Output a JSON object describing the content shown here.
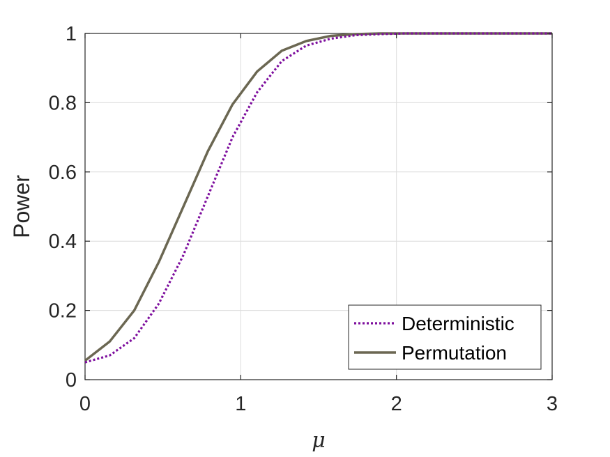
{
  "chart_data": {
    "type": "line",
    "title": "",
    "xlabel": "μ",
    "ylabel": "Power",
    "xlim": [
      0,
      3
    ],
    "ylim": [
      0,
      1
    ],
    "xticks": [
      0,
      1,
      2,
      3
    ],
    "xtick_labels": [
      "0",
      "1",
      "2",
      "3"
    ],
    "yticks": [
      0,
      0.2,
      0.4,
      0.6,
      0.8,
      1
    ],
    "ytick_labels": [
      "0",
      "0.2",
      "0.4",
      "0.6",
      "0.8",
      "1"
    ],
    "grid": true,
    "legend_position": "bottom-right",
    "series": [
      {
        "name": "Deterministic",
        "color": "#7E0F9E",
        "style": "dotted",
        "x": [
          0,
          0.158,
          0.316,
          0.474,
          0.632,
          0.789,
          0.947,
          1.105,
          1.263,
          1.421,
          1.579,
          1.737,
          1.895,
          2.053,
          2.211,
          2.368,
          2.526,
          2.684,
          2.842,
          3.0
        ],
        "y": [
          0.05,
          0.07,
          0.12,
          0.22,
          0.36,
          0.53,
          0.7,
          0.83,
          0.92,
          0.965,
          0.985,
          0.995,
          0.998,
          1.0,
          1.0,
          1.0,
          1.0,
          1.0,
          1.0,
          1.0
        ]
      },
      {
        "name": "Permutation",
        "color": "#6B6752",
        "style": "solid",
        "x": [
          0,
          0.158,
          0.316,
          0.474,
          0.632,
          0.789,
          0.947,
          1.105,
          1.263,
          1.421,
          1.579,
          1.737,
          1.895,
          2.053,
          2.211,
          2.368,
          2.526,
          2.684,
          2.842,
          3.0
        ],
        "y": [
          0.055,
          0.11,
          0.2,
          0.34,
          0.5,
          0.66,
          0.795,
          0.89,
          0.95,
          0.978,
          0.993,
          0.998,
          1.0,
          1.0,
          1.0,
          1.0,
          1.0,
          1.0,
          1.0,
          1.0
        ]
      }
    ]
  }
}
